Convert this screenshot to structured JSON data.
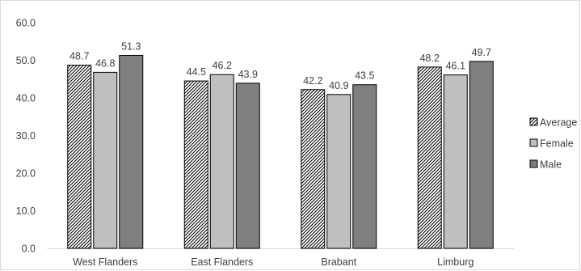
{
  "chart_data": {
    "type": "bar",
    "categories": [
      "West Flanders",
      "East Flanders",
      "Brabant",
      "Limburg"
    ],
    "series": [
      {
        "name": "Average",
        "values": [
          48.7,
          44.5,
          42.2,
          48.2
        ],
        "pattern": "hatch",
        "color": "#000000"
      },
      {
        "name": "Female",
        "values": [
          46.8,
          46.2,
          40.9,
          46.1
        ],
        "pattern": "solid",
        "color": "#bfbfbf"
      },
      {
        "name": "Male",
        "values": [
          51.3,
          43.9,
          43.5,
          49.7
        ],
        "pattern": "solid",
        "color": "#7f7f7f"
      }
    ],
    "yticks": [
      "0.0",
      "10.0",
      "20.0",
      "30.0",
      "40.0",
      "50.0",
      "60.0"
    ],
    "ylim": [
      0,
      60
    ],
    "grid": false,
    "legend_position": "right",
    "xlabel": "",
    "ylabel": "",
    "title": ""
  }
}
